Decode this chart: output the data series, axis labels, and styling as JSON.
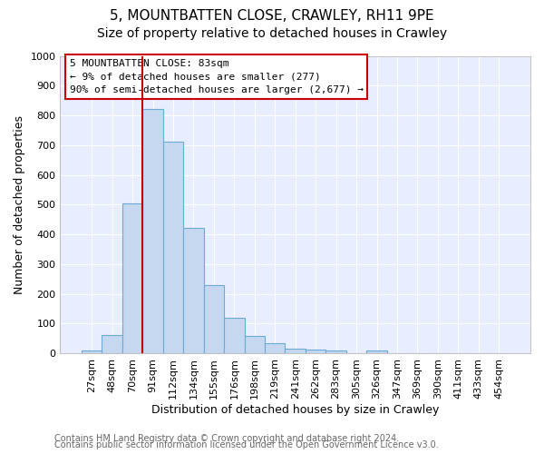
{
  "title": "5, MOUNTBATTEN CLOSE, CRAWLEY, RH11 9PE",
  "subtitle": "Size of property relative to detached houses in Crawley",
  "xlabel": "Distribution of detached houses by size in Crawley",
  "ylabel": "Number of detached properties",
  "bar_labels": [
    "27sqm",
    "48sqm",
    "70sqm",
    "91sqm",
    "112sqm",
    "134sqm",
    "155sqm",
    "176sqm",
    "198sqm",
    "219sqm",
    "241sqm",
    "262sqm",
    "283sqm",
    "305sqm",
    "326sqm",
    "347sqm",
    "369sqm",
    "390sqm",
    "411sqm",
    "433sqm",
    "454sqm"
  ],
  "bar_heights": [
    8,
    60,
    505,
    820,
    710,
    420,
    230,
    120,
    57,
    35,
    15,
    12,
    10,
    0,
    10,
    0,
    0,
    0,
    0,
    0,
    0
  ],
  "bar_color": "#c5d8f0",
  "bar_edge_color": "#6aaad4",
  "ylim": [
    0,
    1000
  ],
  "yticks": [
    0,
    100,
    200,
    300,
    400,
    500,
    600,
    700,
    800,
    900,
    1000
  ],
  "vline_color": "#cc0000",
  "annotation_title": "5 MOUNTBATTEN CLOSE: 83sqm",
  "annotation_line1": "← 9% of detached houses are smaller (277)",
  "annotation_line2": "90% of semi-detached houses are larger (2,677) →",
  "annotation_box_facecolor": "#ffffff",
  "annotation_box_edgecolor": "#cc0000",
  "footer1": "Contains HM Land Registry data © Crown copyright and database right 2024.",
  "footer2": "Contains public sector information licensed under the Open Government Licence v3.0.",
  "fig_background": "#ffffff",
  "plot_background": "#e8eeff",
  "grid_color": "#ffffff",
  "title_fontsize": 11,
  "subtitle_fontsize": 10,
  "axis_label_fontsize": 9,
  "tick_fontsize": 8,
  "footer_fontsize": 7,
  "annotation_fontsize": 8
}
